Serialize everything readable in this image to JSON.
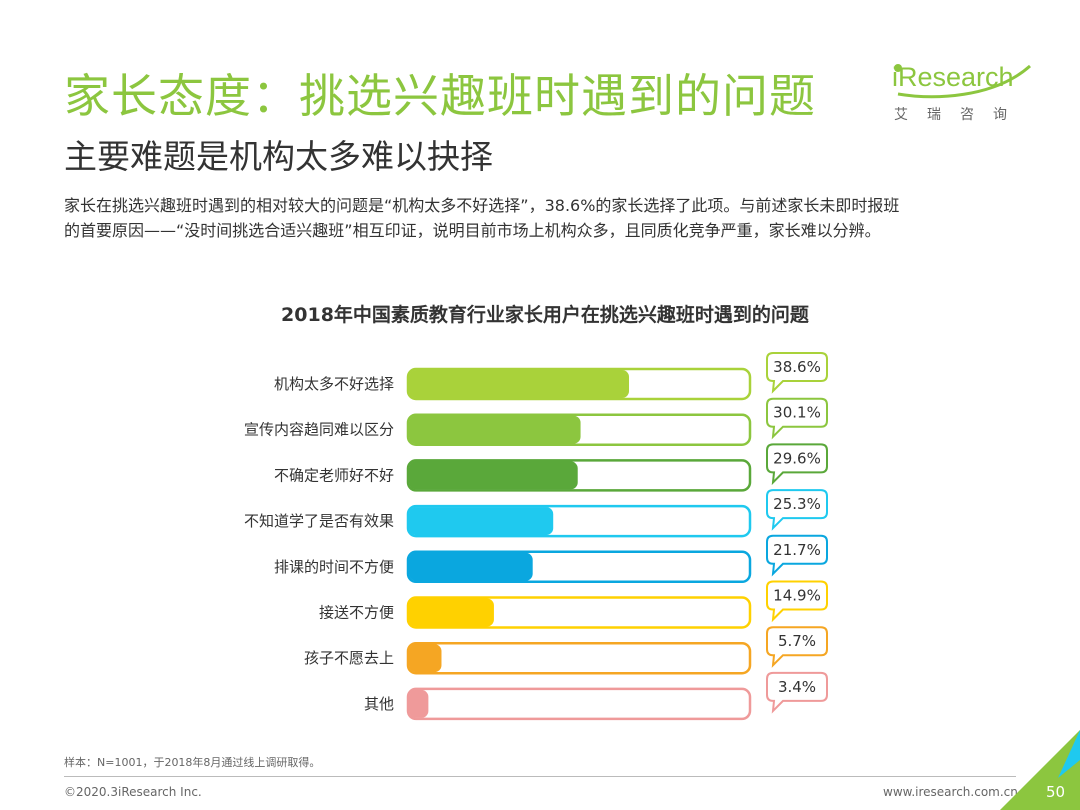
{
  "header": {
    "title": "家长态度：挑选兴趣班时遇到的问题",
    "subtitle": "主要难题是机构太多难以抉择"
  },
  "logo": {
    "brand": "iResearch",
    "cn_name": "艾瑞咨询"
  },
  "description": {
    "line1": "家长在挑选兴趣班时遇到的相对较大的问题是“机构太多不好选择”，38.6%的家长选择了此项。与前述家长未即时报班",
    "line2": "的首要原因——“没时间挑选合适兴趣班”相互印证，说明目前市场上机构众多，且同质化竞争严重，家长难以分辨。"
  },
  "chart_data": {
    "type": "bar",
    "orientation": "horizontal",
    "title": "2018年中国素质教育行业家长用户在挑选兴趣班时遇到的问题",
    "categories": [
      "机构太多不好选择",
      "宣传内容趋同难以区分",
      "不确定老师好不好",
      "不知道学了是否有效果",
      "排课的时间不方便",
      "接送不方便",
      "孩子不愿去上",
      "其他"
    ],
    "values": [
      38.6,
      30.1,
      29.6,
      25.3,
      21.7,
      14.9,
      5.7,
      3.4
    ],
    "value_labels": [
      "38.6%",
      "30.1%",
      "29.6%",
      "25.3%",
      "21.7%",
      "14.9%",
      "5.7%",
      "3.4%"
    ],
    "colors": [
      "#a9d23a",
      "#8cc63f",
      "#5aa83a",
      "#1fc9ef",
      "#0aa7df",
      "#ffd100",
      "#f5a623",
      "#ef9a9a"
    ],
    "xlim": [
      0,
      60
    ],
    "unit": "%"
  },
  "footer": {
    "note": "样本：N=1001，于2018年8月通过线上调研取得。",
    "copyright": "©2020.3iResearch Inc.",
    "website": "www.iresearch.com.cn",
    "page": "50"
  }
}
